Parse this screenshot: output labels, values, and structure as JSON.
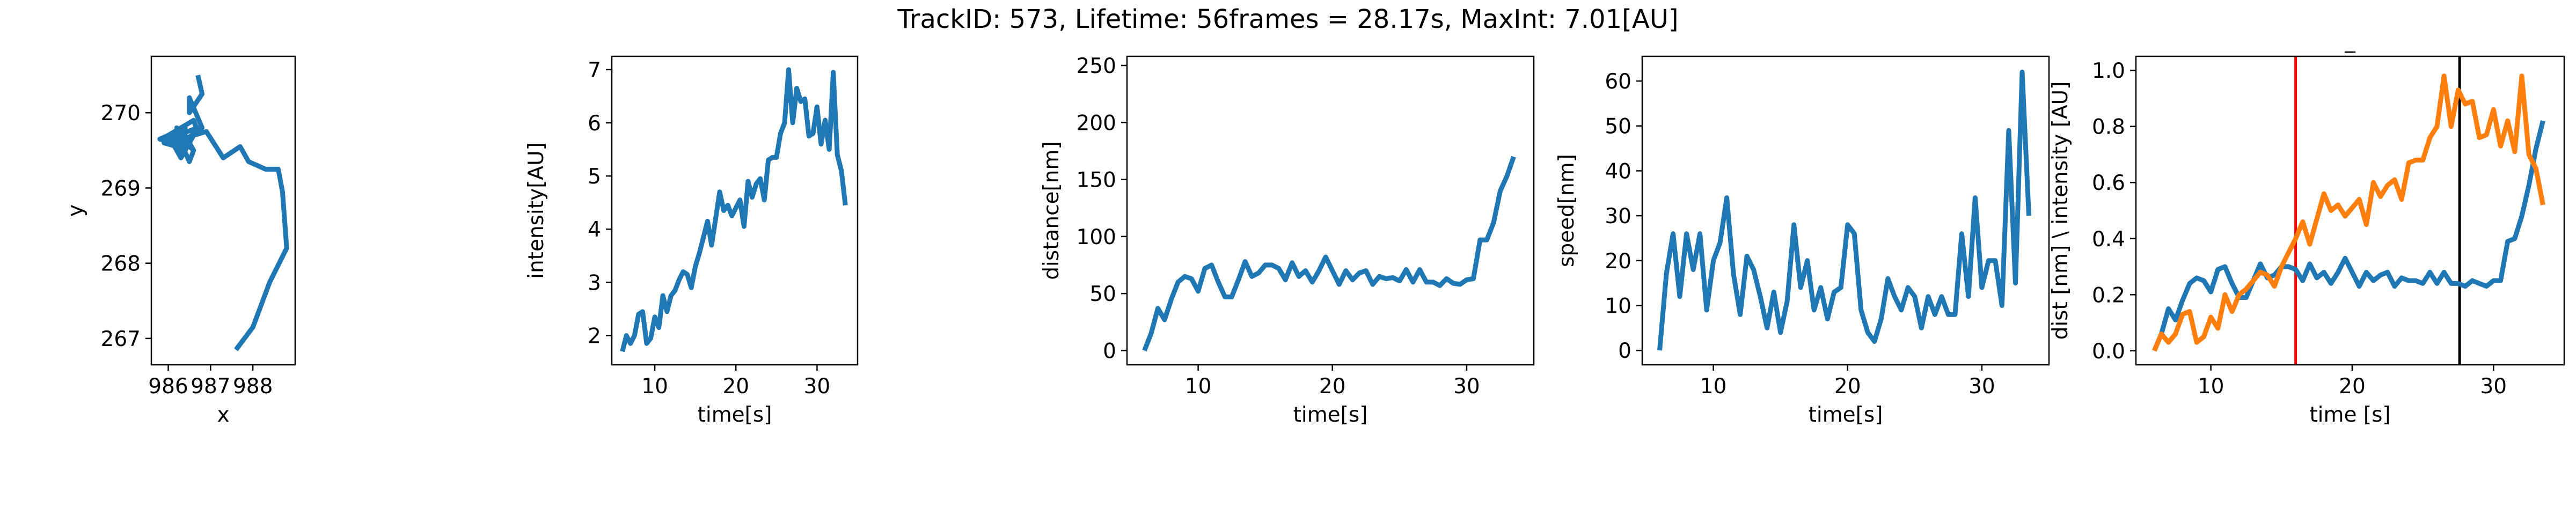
{
  "suptitle": "TrackID: 573, Lifetime: 56frames = 28.17s, MaxInt: 7.01[AU]",
  "colors": {
    "blue": "#1f77b4",
    "orange": "#ff7f0e",
    "red": "#ff0000",
    "black": "#000000"
  },
  "chart_data": [
    {
      "type": "line",
      "title": "",
      "xlabel": "x",
      "ylabel": "y",
      "xlim": [
        985.6,
        989.0
      ],
      "ylim": [
        266.65,
        270.75
      ],
      "xticks": [
        986,
        987,
        988
      ],
      "yticks": [
        267,
        268,
        269,
        270
      ],
      "grid": false,
      "series": [
        {
          "color": "#1f77b4",
          "x": [
            986.7,
            986.8,
            986.5,
            986.5,
            986.8,
            986.3,
            986.2,
            986.6,
            986.2,
            986.5,
            986.3,
            986.6,
            986.3,
            986.1,
            986.4,
            986.0,
            986.5,
            986.2,
            986.4,
            986.5,
            986.7,
            986.2,
            986.3,
            986.7,
            986.6,
            986.0,
            985.9,
            986.2,
            986.4,
            986.6,
            986.5,
            986.3,
            986.0,
            985.8,
            986.2,
            986.4,
            986.6,
            986.9,
            987.3,
            987.7,
            987.9,
            988.3,
            988.6,
            988.7,
            988.8,
            988.4,
            988.0,
            987.6
          ],
          "y": [
            270.5,
            270.25,
            270.0,
            270.2,
            269.8,
            269.6,
            269.7,
            269.5,
            269.8,
            269.6,
            269.5,
            269.7,
            269.4,
            269.6,
            269.8,
            269.7,
            269.6,
            269.5,
            269.7,
            269.6,
            269.8,
            269.7,
            269.6,
            269.75,
            269.9,
            269.7,
            269.6,
            269.55,
            269.7,
            269.5,
            269.35,
            269.6,
            269.7,
            269.65,
            269.6,
            269.65,
            269.7,
            269.75,
            269.4,
            269.55,
            269.35,
            269.25,
            269.25,
            268.95,
            268.2,
            267.75,
            267.15,
            266.85
          ]
        }
      ]
    },
    {
      "type": "line",
      "title": "",
      "xlabel": "time[s]",
      "ylabel": "intensity[AU]",
      "xlim": [
        4.7,
        35.0
      ],
      "ylim": [
        1.45,
        7.25
      ],
      "xticks": [
        10,
        20,
        30
      ],
      "yticks": [
        2,
        3,
        4,
        5,
        6,
        7
      ],
      "grid": false,
      "series": [
        {
          "color": "#1f77b4",
          "x": [
            6.0,
            6.5,
            7.0,
            7.5,
            8.0,
            8.5,
            9.0,
            9.5,
            10.0,
            10.5,
            11.0,
            11.5,
            12.0,
            12.5,
            13.0,
            13.5,
            14.0,
            14.5,
            15.0,
            15.5,
            16.0,
            16.5,
            17.0,
            17.5,
            18.0,
            18.5,
            19.0,
            19.5,
            20.0,
            20.5,
            21.0,
            21.5,
            22.0,
            22.5,
            23.0,
            23.5,
            24.0,
            24.5,
            25.0,
            25.5,
            26.0,
            26.5,
            27.0,
            27.5,
            28.0,
            28.5,
            29.0,
            29.5,
            30.0,
            30.5,
            31.0,
            31.5,
            32.0,
            32.5,
            33.0,
            33.5
          ],
          "y": [
            1.7,
            2.0,
            1.85,
            2.0,
            2.4,
            2.45,
            1.85,
            1.95,
            2.35,
            2.15,
            2.75,
            2.45,
            2.75,
            2.85,
            3.05,
            3.2,
            3.15,
            2.9,
            3.3,
            3.55,
            3.85,
            4.15,
            3.7,
            4.2,
            4.7,
            4.35,
            4.45,
            4.25,
            4.4,
            4.55,
            4.05,
            4.9,
            4.6,
            4.85,
            4.95,
            4.55,
            5.3,
            5.35,
            5.35,
            5.8,
            6.0,
            7.0,
            6.0,
            6.65,
            6.4,
            6.45,
            5.75,
            5.8,
            6.3,
            5.6,
            6.05,
            5.5,
            6.95,
            5.4,
            5.1,
            4.45
          ]
        }
      ]
    },
    {
      "type": "line",
      "title": "",
      "xlabel": "time[s]",
      "ylabel": "distance[nm]",
      "xlim": [
        4.7,
        35.0
      ],
      "ylim": [
        -12.5,
        258
      ],
      "xticks": [
        10,
        20,
        30
      ],
      "yticks": [
        0,
        50,
        100,
        150,
        200,
        250
      ],
      "grid": false,
      "series": [
        {
          "color": "#1f77b4",
          "x": [
            6.0,
            6.5,
            7.0,
            7.5,
            8.0,
            8.5,
            9.0,
            9.5,
            10.0,
            10.5,
            11.0,
            11.5,
            12.0,
            12.5,
            13.0,
            13.5,
            14.0,
            14.5,
            15.0,
            15.5,
            16.0,
            16.5,
            17.0,
            17.5,
            18.0,
            18.5,
            19.0,
            19.5,
            20.0,
            20.5,
            21.0,
            21.5,
            22.0,
            22.5,
            23.0,
            23.5,
            24.0,
            24.5,
            25.0,
            25.5,
            26.0,
            26.5,
            27.0,
            27.5,
            28.0,
            28.5,
            29.0,
            29.5,
            30.0,
            30.5,
            31.0,
            31.5,
            32.0,
            32.5,
            33.0,
            33.5
          ],
          "y": [
            0,
            15,
            37,
            27,
            45,
            60,
            65,
            63,
            52,
            72,
            75,
            60,
            47,
            47,
            62,
            78,
            65,
            68,
            75,
            75,
            72,
            62,
            77,
            65,
            70,
            60,
            70,
            82,
            70,
            58,
            70,
            62,
            68,
            70,
            58,
            65,
            63,
            64,
            61,
            71,
            60,
            71,
            60,
            60,
            57,
            63,
            59,
            58,
            62,
            63,
            97,
            97,
            112,
            140,
            153,
            170
          ]
        }
      ]
    },
    {
      "type": "line",
      "title": "",
      "xlabel": "time[s]",
      "ylabel": "speed[nm]",
      "xlim": [
        4.7,
        35.0
      ],
      "ylim": [
        -3.2,
        65.5
      ],
      "xticks": [
        10,
        20,
        30
      ],
      "yticks": [
        0,
        10,
        20,
        30,
        40,
        50,
        60
      ],
      "grid": false,
      "series": [
        {
          "color": "#1f77b4",
          "x": [
            6.0,
            6.5,
            7.0,
            7.5,
            8.0,
            8.5,
            9.0,
            9.5,
            10.0,
            10.5,
            11.0,
            11.5,
            12.0,
            12.5,
            13.0,
            13.5,
            14.0,
            14.5,
            15.0,
            15.5,
            16.0,
            16.5,
            17.0,
            17.5,
            18.0,
            18.5,
            19.0,
            19.5,
            20.0,
            20.5,
            21.0,
            21.5,
            22.0,
            22.5,
            23.0,
            23.5,
            24.0,
            24.5,
            25.0,
            25.5,
            26.0,
            26.5,
            27.0,
            27.5,
            28.0,
            28.5,
            29.0,
            29.5,
            30.0,
            30.5,
            31.0,
            31.5,
            32.0,
            32.5,
            33.0,
            33.5
          ],
          "y": [
            0,
            17,
            26,
            12,
            26,
            18,
            26,
            9,
            20,
            24,
            34,
            17,
            8,
            21,
            18,
            12,
            5,
            13,
            4,
            11,
            28,
            14,
            20,
            9,
            14,
            7,
            13,
            14,
            28,
            26,
            9,
            4,
            2,
            7,
            16,
            12,
            9,
            14,
            12,
            5,
            12,
            8,
            12,
            8,
            8,
            26,
            12,
            34,
            14,
            20,
            20,
            10,
            49,
            15,
            62,
            30
          ]
        }
      ]
    },
    {
      "type": "line",
      "title": "_",
      "xlabel": "time [s]",
      "ylabel": "dist [nm] \\ intensity [AU]",
      "xlim": [
        4.7,
        35.0
      ],
      "ylim": [
        -0.05,
        1.05
      ],
      "xticks": [
        10,
        20,
        30
      ],
      "yticks": [
        0.0,
        0.2,
        0.4,
        0.6,
        0.8,
        1.0
      ],
      "ytick_labels": [
        "0.0",
        "0.2",
        "0.4",
        "0.6",
        "0.8",
        "1.0"
      ],
      "grid": false,
      "vlines": [
        {
          "x": 16.0,
          "color": "#ff0000"
        },
        {
          "x": 27.6,
          "color": "#000000"
        }
      ],
      "series": [
        {
          "color": "#1f77b4",
          "x": [
            6.0,
            6.5,
            7.0,
            7.5,
            8.0,
            8.5,
            9.0,
            9.5,
            10.0,
            10.5,
            11.0,
            11.5,
            12.0,
            12.5,
            13.0,
            13.5,
            14.0,
            14.5,
            15.0,
            15.5,
            16.0,
            16.5,
            17.0,
            17.5,
            18.0,
            18.5,
            19.0,
            19.5,
            20.0,
            20.5,
            21.0,
            21.5,
            22.0,
            22.5,
            23.0,
            23.5,
            24.0,
            24.5,
            25.0,
            25.5,
            26.0,
            26.5,
            27.0,
            27.5,
            28.0,
            28.5,
            29.0,
            29.5,
            30.0,
            30.5,
            31.0,
            31.5,
            32.0,
            32.5,
            33.0,
            33.5
          ],
          "y": [
            0.0,
            0.06,
            0.15,
            0.11,
            0.18,
            0.24,
            0.26,
            0.25,
            0.21,
            0.29,
            0.3,
            0.24,
            0.19,
            0.19,
            0.25,
            0.31,
            0.26,
            0.27,
            0.3,
            0.3,
            0.29,
            0.25,
            0.31,
            0.26,
            0.28,
            0.24,
            0.28,
            0.33,
            0.28,
            0.23,
            0.28,
            0.25,
            0.27,
            0.28,
            0.23,
            0.26,
            0.25,
            0.25,
            0.24,
            0.28,
            0.24,
            0.28,
            0.24,
            0.24,
            0.23,
            0.25,
            0.24,
            0.23,
            0.25,
            0.25,
            0.39,
            0.4,
            0.48,
            0.59,
            0.72,
            0.82
          ]
        },
        {
          "color": "#ff7f0e",
          "x": [
            6.0,
            6.5,
            7.0,
            7.5,
            8.0,
            8.5,
            9.0,
            9.5,
            10.0,
            10.5,
            11.0,
            11.5,
            12.0,
            12.5,
            13.0,
            13.5,
            14.0,
            14.5,
            15.0,
            15.5,
            16.0,
            16.5,
            17.0,
            17.5,
            18.0,
            18.5,
            19.0,
            19.5,
            20.0,
            20.5,
            21.0,
            21.5,
            22.0,
            22.5,
            23.0,
            23.5,
            24.0,
            24.5,
            25.0,
            25.5,
            26.0,
            26.5,
            27.0,
            27.5,
            28.0,
            28.5,
            29.0,
            29.5,
            30.0,
            30.5,
            31.0,
            31.5,
            32.0,
            32.5,
            33.0,
            33.5
          ],
          "y": [
            0.0,
            0.06,
            0.03,
            0.06,
            0.13,
            0.14,
            0.03,
            0.05,
            0.12,
            0.08,
            0.2,
            0.14,
            0.2,
            0.22,
            0.25,
            0.28,
            0.27,
            0.23,
            0.3,
            0.35,
            0.4,
            0.46,
            0.38,
            0.47,
            0.56,
            0.5,
            0.52,
            0.48,
            0.51,
            0.54,
            0.45,
            0.6,
            0.55,
            0.59,
            0.61,
            0.54,
            0.67,
            0.68,
            0.68,
            0.76,
            0.8,
            0.98,
            0.8,
            0.93,
            0.88,
            0.89,
            0.76,
            0.77,
            0.86,
            0.73,
            0.82,
            0.71,
            0.98,
            0.7,
            0.65,
            0.52
          ]
        }
      ]
    }
  ]
}
